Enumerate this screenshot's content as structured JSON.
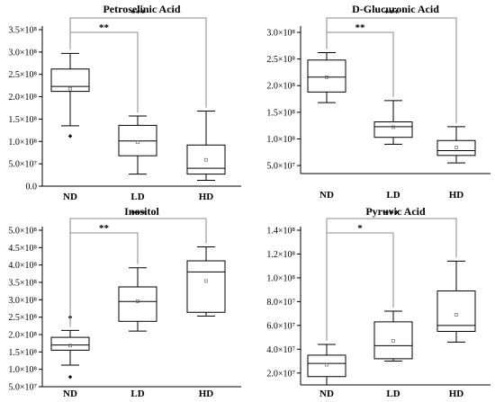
{
  "chart_data": [
    {
      "type": "box",
      "title": "Petroselinic Acid",
      "categories": [
        "ND",
        "LD",
        "HD"
      ],
      "ylim": [
        0,
        350000000
      ],
      "ytick_values": [
        0,
        50000000,
        100000000,
        150000000,
        200000000,
        250000000,
        300000000,
        350000000
      ],
      "ytick_labels": [
        "0.0",
        "5.0×10⁷",
        "1.0×10⁸",
        "1.5×10⁸",
        "2.0×10⁸",
        "2.5×10⁸",
        "3.0×10⁸",
        "3.5×10⁸"
      ],
      "boxes": [
        {
          "label": "ND",
          "whisker_low": 135000000,
          "q1": 212000000,
          "median": 223000000,
          "q3": 262000000,
          "whisker_high": 297000000,
          "mean": 218000000,
          "outliers": [
            112000000
          ]
        },
        {
          "label": "LD",
          "whisker_low": 27000000,
          "q1": 68000000,
          "median": 101000000,
          "q3": 136000000,
          "whisker_high": 157000000,
          "mean": 98000000,
          "outliers": []
        },
        {
          "label": "HD",
          "whisker_low": 13000000,
          "q1": 27000000,
          "median": 40000000,
          "q3": 92000000,
          "whisker_high": 168000000,
          "mean": 59000000,
          "outliers": []
        }
      ],
      "comparisons": [
        {
          "from": "ND",
          "to": "LD",
          "label": "**"
        },
        {
          "from": "ND",
          "to": "HD",
          "label": "***"
        }
      ]
    },
    {
      "type": "box",
      "title": "D-Glucuronic Acid",
      "categories": [
        "ND",
        "LD",
        "HD"
      ],
      "ylim": [
        35000000,
        305000000
      ],
      "ytick_values": [
        50000000,
        100000000,
        150000000,
        200000000,
        250000000,
        300000000
      ],
      "ytick_labels": [
        "5.0×10⁷",
        "1.0×10⁸",
        "1.5×10⁸",
        "2.0×10⁸",
        "2.5×10⁸",
        "3.0×10⁸"
      ],
      "boxes": [
        {
          "label": "ND",
          "whisker_low": 168000000,
          "q1": 188000000,
          "median": 216000000,
          "q3": 248000000,
          "whisker_high": 262000000,
          "mean": 216000000,
          "outliers": []
        },
        {
          "label": "LD",
          "whisker_low": 90000000,
          "q1": 103000000,
          "median": 123000000,
          "q3": 132000000,
          "whisker_high": 172000000,
          "mean": 122000000,
          "outliers": []
        },
        {
          "label": "HD",
          "whisker_low": 55000000,
          "q1": 69000000,
          "median": 78000000,
          "q3": 97000000,
          "whisker_high": 123000000,
          "mean": 84000000,
          "outliers": []
        }
      ],
      "comparisons": [
        {
          "from": "ND",
          "to": "LD",
          "label": "**"
        },
        {
          "from": "ND",
          "to": "HD",
          "label": "***"
        }
      ]
    },
    {
      "type": "box",
      "title": "Inositol",
      "categories": [
        "ND",
        "LD",
        "HD"
      ],
      "ylim": [
        50000000,
        500000000
      ],
      "ytick_values": [
        50000000,
        100000000,
        150000000,
        200000000,
        250000000,
        300000000,
        350000000,
        400000000,
        450000000,
        500000000
      ],
      "ytick_labels": [
        "5.0×10⁷",
        "1.0×10⁸",
        "1.5×10⁸",
        "2.0×10⁸",
        "2.5×10⁸",
        "3.0×10⁸",
        "3.5×10⁸",
        "4.0×10⁸",
        "4.5×10⁸",
        "5.0×10⁸"
      ],
      "boxes": [
        {
          "label": "ND",
          "whisker_low": 112000000,
          "q1": 155000000,
          "median": 170000000,
          "q3": 192000000,
          "whisker_high": 212000000,
          "mean": 168000000,
          "outliers": [
            250000000,
            78000000
          ]
        },
        {
          "label": "LD",
          "whisker_low": 210000000,
          "q1": 238000000,
          "median": 295000000,
          "q3": 337000000,
          "whisker_high": 392000000,
          "mean": 296000000,
          "outliers": []
        },
        {
          "label": "HD",
          "whisker_low": 253000000,
          "q1": 264000000,
          "median": 380000000,
          "q3": 412000000,
          "whisker_high": 452000000,
          "mean": 354000000,
          "outliers": []
        }
      ],
      "comparisons": [
        {
          "from": "ND",
          "to": "LD",
          "label": "**"
        },
        {
          "from": "ND",
          "to": "HD",
          "label": "***"
        }
      ]
    },
    {
      "type": "box",
      "title": "Pyruvic Acid",
      "categories": [
        "ND",
        "LD",
        "HD"
      ],
      "ylim": [
        10000000,
        140000000
      ],
      "ytick_values": [
        20000000,
        40000000,
        60000000,
        80000000,
        100000000,
        120000000,
        140000000
      ],
      "ytick_labels": [
        "2.0×10⁷",
        "4.0×10⁷",
        "6.0×10⁷",
        "8.0×10⁷",
        "1.0×10⁸",
        "1.2×10⁸",
        "1.4×10⁸"
      ],
      "boxes": [
        {
          "label": "ND",
          "whisker_low": 10000000,
          "q1": 17000000,
          "median": 28000000,
          "q3": 35000000,
          "whisker_high": 44000000,
          "mean": 27000000,
          "outliers": []
        },
        {
          "label": "LD",
          "whisker_low": 30000000,
          "q1": 32000000,
          "median": 43000000,
          "q3": 63000000,
          "whisker_high": 72000000,
          "mean": 47000000,
          "outliers": []
        },
        {
          "label": "HD",
          "whisker_low": 46000000,
          "q1": 55000000,
          "median": 60000000,
          "q3": 89000000,
          "whisker_high": 114000000,
          "mean": 69000000,
          "outliers": []
        }
      ],
      "comparisons": [
        {
          "from": "ND",
          "to": "LD",
          "label": "*"
        },
        {
          "from": "ND",
          "to": "HD",
          "label": "***"
        }
      ]
    }
  ]
}
